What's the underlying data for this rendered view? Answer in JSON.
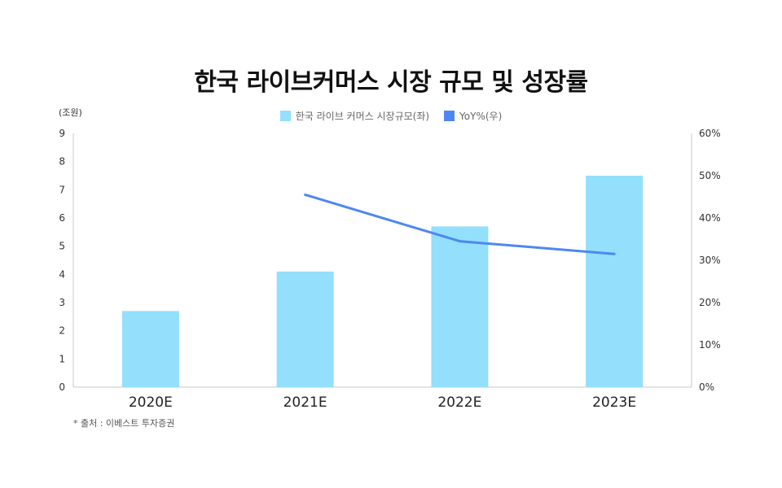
{
  "title": "한국 라이브커머스 시장 규모 및 성장률",
  "unit_label": "(조원)",
  "source": "* 출처 : 이베스트 투자증권",
  "chart_data": {
    "type": "bar",
    "categories": [
      "2020E",
      "2021E",
      "2022E",
      "2023E"
    ],
    "series": [
      {
        "name": "한국 라이브 커머스 시장규모(좌)",
        "type": "bar",
        "axis": "left",
        "color": "#93dffc",
        "values": [
          2.7,
          4.1,
          5.7,
          7.5
        ]
      },
      {
        "name": "YoY%(우)",
        "type": "line",
        "axis": "right",
        "color": "#4f87f2",
        "values": [
          null,
          45.5,
          34.5,
          31.5
        ]
      }
    ],
    "y_left": {
      "min": 0,
      "max": 9,
      "ticks": [
        "0",
        "1",
        "2",
        "3",
        "4",
        "5",
        "6",
        "7",
        "8",
        "9"
      ]
    },
    "y_right": {
      "min": 0,
      "max": 60,
      "ticks": [
        "0%",
        "10%",
        "20%",
        "30%",
        "40%",
        "50%",
        "60%"
      ]
    },
    "legend_position": "top-center",
    "grid": false
  }
}
